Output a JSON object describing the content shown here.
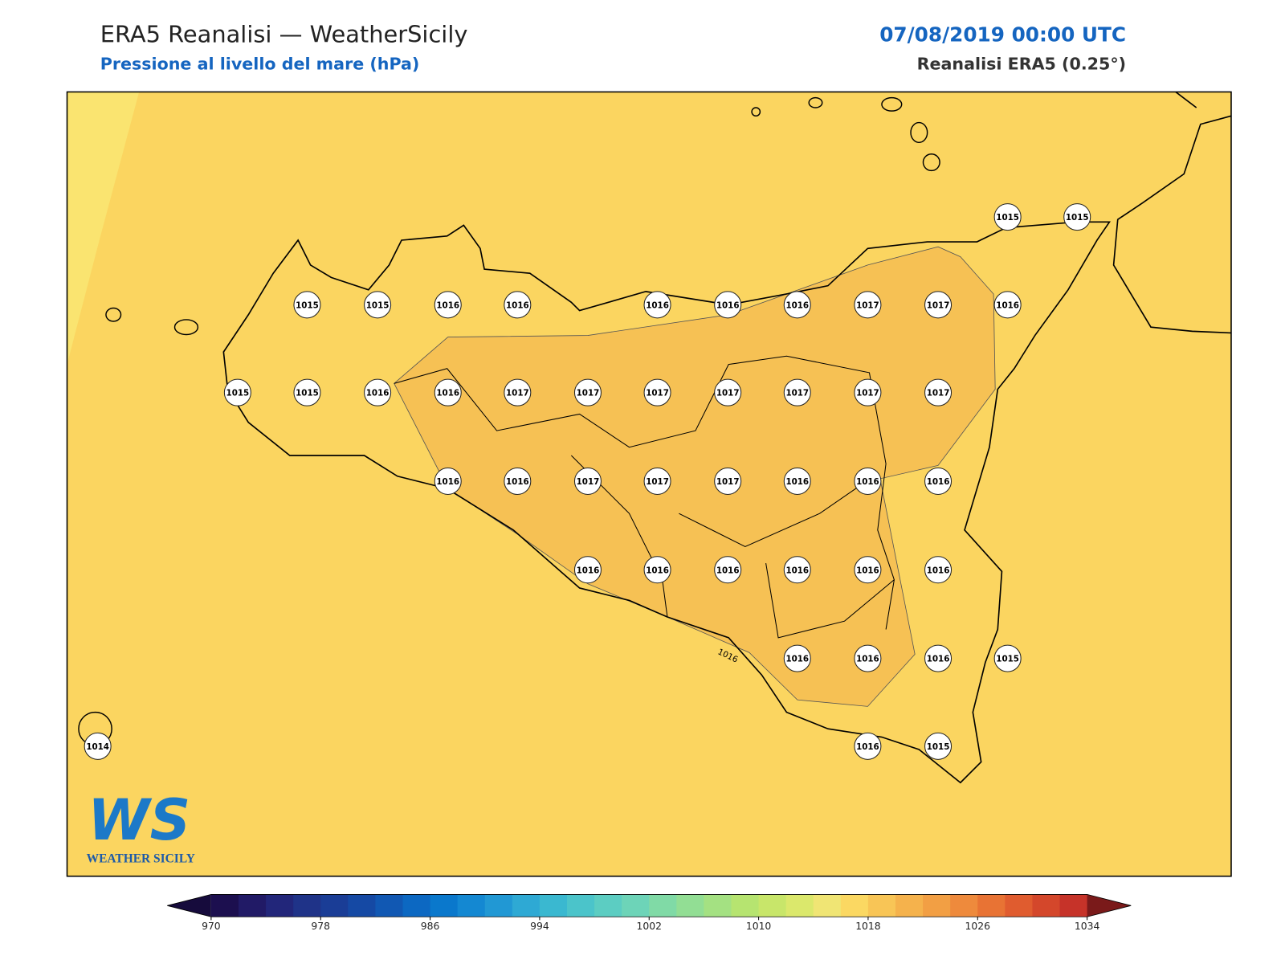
{
  "header": {
    "title": "ERA5 Reanalisi — WeatherSicily",
    "subtitle": "Pressione al livello del mare (hPa)",
    "date": "07/08/2019 00:00 UTC",
    "source": "Reanalisi ERA5 (0.25°)"
  },
  "stations": {
    "values": [
      1015,
      1015,
      1015,
      1015,
      1016,
      1016,
      1016,
      1016,
      1016,
      1017,
      1017,
      1016,
      1015,
      1015,
      1016,
      1016,
      1017,
      1017,
      1017,
      1017,
      1017,
      1017,
      1017,
      1016,
      1016,
      1017,
      1017,
      1017,
      1016,
      1016,
      1016,
      1016,
      1016,
      1016,
      1016,
      1016,
      1016,
      1016,
      1016,
      1016,
      1015,
      1014,
      1016,
      1015
    ]
  },
  "contour_labels": [
    1016
  ],
  "logo": {
    "mark": "WS",
    "name": "WEATHER SICILY"
  },
  "colorbar": {
    "lim": [
      970,
      1034
    ],
    "ticks": [
      970,
      978,
      986,
      994,
      1002,
      1010,
      1018,
      1026,
      1034
    ],
    "colors": [
      "#1c0f4f",
      "#211a66",
      "#22267a",
      "#1f3388",
      "#1a3d96",
      "#1549a4",
      "#1158b3",
      "#0c68c2",
      "#0a78cc",
      "#1488d2",
      "#2198d4",
      "#2ea9d4",
      "#3ab8d0",
      "#4bc4ca",
      "#5ccdc2",
      "#6dd4b8",
      "#80daa6",
      "#92de94",
      "#a4e182",
      "#b6e470",
      "#c8e66a",
      "#dbe86c",
      "#f0e574",
      "#fbd862",
      "#f8c556",
      "#f5b24c",
      "#f29f44",
      "#ee8a3c",
      "#e87334",
      "#e05c2f",
      "#d4472b",
      "#c63329"
    ],
    "under_color": "#160b3c",
    "over_color": "#7a1a1a"
  }
}
